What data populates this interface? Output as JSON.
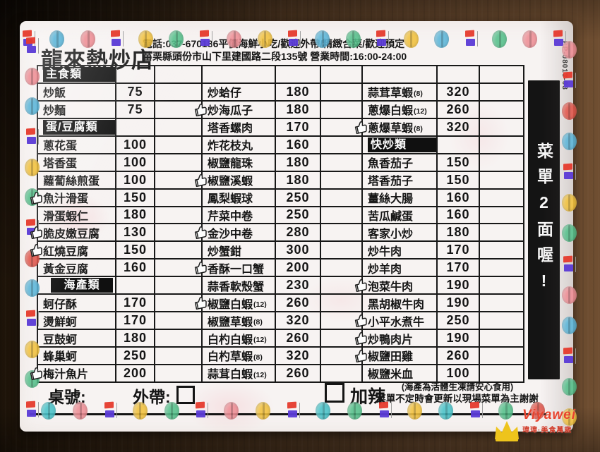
{
  "header": {
    "restaurant_name": "龍來熱炒店",
    "info_line1": "電話:037-670186平價海鮮小吃/歡迎外帶/精緻合菜/歡迎預定",
    "info_line2": "苗栗縣頭份市山下里建國路二段135號  營業時間:16:00-24:00",
    "code": "PP-08013-03"
  },
  "side_note": "菜單2面喔!",
  "menu": {
    "groups": [
      {
        "widths": [
          111,
          55,
          67
        ],
        "rows": [
          {
            "type": "category",
            "label": "主食類"
          },
          {
            "type": "item",
            "name": "炒飯",
            "price": "75"
          },
          {
            "type": "item",
            "name": "炒麵",
            "price": "75"
          },
          {
            "type": "category",
            "label": "蛋/豆腐類"
          },
          {
            "type": "item",
            "name": "蔥花蛋",
            "price": "100"
          },
          {
            "type": "item",
            "name": "塔香蛋",
            "price": "100"
          },
          {
            "type": "item",
            "name": "蘿蔔絲煎蛋",
            "price": "100"
          },
          {
            "type": "item",
            "name": "魚汁滑蛋",
            "price": "150",
            "liked": true
          },
          {
            "type": "item",
            "name": "滑蛋蝦仁",
            "price": "180"
          },
          {
            "type": "item",
            "name": "脆皮嫩豆腐",
            "price": "130",
            "liked": true
          },
          {
            "type": "item",
            "name": "紅燒豆腐",
            "price": "150",
            "liked": true
          },
          {
            "type": "item",
            "name": "黃金豆腐",
            "price": "160"
          },
          {
            "type": "category",
            "label": "海產類",
            "inset": true
          },
          {
            "type": "item",
            "name": "蚵仔酥",
            "price": "170"
          },
          {
            "type": "item",
            "name": "燙鮮蚵",
            "price": "170"
          },
          {
            "type": "item",
            "name": "豆鼓蚵",
            "price": "180"
          },
          {
            "type": "item",
            "name": "蜂巢蚵",
            "price": "250"
          },
          {
            "type": "item",
            "name": "梅汁魚片",
            "price": "200",
            "liked": true
          }
        ]
      },
      {
        "widths": [
          104,
          64,
          59
        ],
        "rows": [
          {
            "type": "empty"
          },
          {
            "type": "item",
            "name": "炒蛤仔",
            "price": "180"
          },
          {
            "type": "item",
            "name": "炒海瓜子",
            "price": "180",
            "liked": true
          },
          {
            "type": "item",
            "name": "塔香螺肉",
            "price": "170"
          },
          {
            "type": "item",
            "name": "炸花枝丸",
            "price": "160"
          },
          {
            "type": "item",
            "name": "椒鹽龍珠",
            "price": "180"
          },
          {
            "type": "item",
            "name": "椒鹽溪蝦",
            "price": "180",
            "liked": true
          },
          {
            "type": "item",
            "name": "鳳梨蝦球",
            "price": "250"
          },
          {
            "type": "item",
            "name": "芹菜中卷",
            "price": "250"
          },
          {
            "type": "item",
            "name": "金沙中卷",
            "price": "280",
            "liked": true
          },
          {
            "type": "item",
            "name": "炒蟹鉗",
            "price": "300"
          },
          {
            "type": "item",
            "name": "香酥一口蟹",
            "price": "200",
            "liked": true
          },
          {
            "type": "item",
            "name": "蒜香軟殼蟹",
            "price": "230"
          },
          {
            "type": "item",
            "name": "椒鹽白蝦",
            "suffix": "(12)",
            "price": "260",
            "liked": true
          },
          {
            "type": "item",
            "name": "椒鹽草蝦",
            "suffix": "(8)",
            "price": "320"
          },
          {
            "type": "item",
            "name": "白杓白蝦",
            "suffix": "(12)",
            "price": "260"
          },
          {
            "type": "item",
            "name": "白杓草蝦",
            "suffix": "(8)",
            "price": "320"
          },
          {
            "type": "item",
            "name": "蒜茸白蝦",
            "suffix": "(12)",
            "price": "260"
          }
        ]
      },
      {
        "widths": [
          106,
          60,
          63
        ],
        "rows": [
          {
            "type": "empty"
          },
          {
            "type": "item",
            "name": "蒜茸草蝦",
            "suffix": "(8)",
            "price": "320"
          },
          {
            "type": "item",
            "name": "蔥爆白蝦",
            "suffix": "(12)",
            "price": "260"
          },
          {
            "type": "item",
            "name": "蔥爆草蝦",
            "suffix": "(8)",
            "price": "320",
            "liked": true
          },
          {
            "type": "category",
            "label": "快炒類"
          },
          {
            "type": "item",
            "name": "魚香茄子",
            "price": "150"
          },
          {
            "type": "item",
            "name": "塔香茄子",
            "price": "150"
          },
          {
            "type": "item",
            "name": "薑絲大腸",
            "price": "160"
          },
          {
            "type": "item",
            "name": "苦瓜鹹蛋",
            "price": "160"
          },
          {
            "type": "item",
            "name": "客家小炒",
            "price": "180"
          },
          {
            "type": "item",
            "name": "炒牛肉",
            "price": "170"
          },
          {
            "type": "item",
            "name": "炒羊肉",
            "price": "170"
          },
          {
            "type": "item",
            "name": "泡菜牛肉",
            "price": "190",
            "liked": true
          },
          {
            "type": "item",
            "name": "黑胡椒牛肉",
            "price": "190"
          },
          {
            "type": "item",
            "name": "小平水煮牛",
            "price": "250",
            "liked": true
          },
          {
            "type": "item",
            "name": "炒鴨肉片",
            "price": "190",
            "liked": true
          },
          {
            "type": "item",
            "name": "椒鹽田雞",
            "price": "260",
            "liked": true
          },
          {
            "type": "item",
            "name": "椒鹽米血",
            "price": "100"
          }
        ]
      }
    ]
  },
  "footer": {
    "table_no_label": "桌號:",
    "takeout_label": "外帶:",
    "spicy_label": "加辣",
    "note1": "(海產為活體生凍請安心食用)",
    "note2": "菜單不定時會更新以現場菜單為主謝謝"
  },
  "watermark": {
    "brand": "Viyawei",
    "tagline": "瑋瑋·美食萬歲",
    "crown_color": "#eec41c",
    "text_color": "#e8432e"
  },
  "palette": {
    "paper": "#f7f3f2",
    "ink": "#141414",
    "category_bg": "#101010",
    "strip_bg": "#141414",
    "wood_dark": "#1d1309",
    "wood_light": "#6f4e31"
  },
  "decor": {
    "colors": {
      "red": "#e2574c",
      "pink": "#ef8f96",
      "blue": "#5cb6d9",
      "teal": "#49c3c9",
      "yellow": "#f2c23e",
      "green": "#55c08b",
      "flag_top": "#e63b2e",
      "flag_bottom": "#5b3bd6"
    },
    "top": [
      "flag",
      "blue",
      "pink",
      "flag",
      "yellow",
      "green",
      "flag",
      "pink",
      "yellow",
      "flag",
      "blue",
      "green",
      "flag",
      "yellow",
      "blue",
      "flag",
      "green",
      "pink",
      "flag"
    ],
    "bottom": [
      "teal",
      "pink",
      "flag",
      "yellow",
      "green",
      "flag",
      "pink",
      "yellow",
      "flag",
      "teal",
      "green",
      "flag",
      "yellow",
      "teal",
      "flag",
      "green",
      "red"
    ],
    "left": [
      "flag",
      "pink",
      "blue",
      "flag",
      "yellow",
      "green",
      "flag",
      "red",
      "blue",
      "flag",
      "yellow",
      "green",
      "flag"
    ],
    "right": [
      "pink",
      "flag",
      "red",
      "blue",
      "flag",
      "yellow",
      "green",
      "flag",
      "pink",
      "blue",
      "flag",
      "green",
      "yellow"
    ]
  }
}
